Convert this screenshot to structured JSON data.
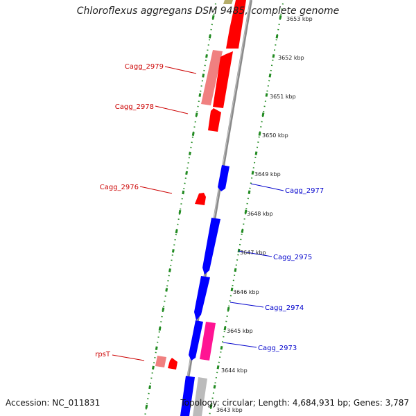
{
  "title": "Chloroflexus aggregans DSM 9485, complete genome",
  "accession": "Accession: NC_011831",
  "topology": "Topology: circular; Length: 4,684,931 bp; Genes: 3,787",
  "colors": {
    "forward_red": "#ff0000",
    "forward_light": "#f08080",
    "reverse_blue": "#0000ff",
    "magenta": "#ff1493",
    "grey": "#bbbbbb",
    "olive": "#b5ad6a",
    "dotted_green": "#228b22",
    "backbone": "#888888",
    "label_red": "#cc0000",
    "label_blue": "#0000cc"
  },
  "tick_labels": [
    "3653 kbp",
    "3652 kbp",
    "3651 kbp",
    "3650 kbp",
    "3649 kbp",
    "3648 kbp",
    "3647 kbp",
    "3646 kbp",
    "3645 kbp",
    "3644 kbp",
    "3643 kbp"
  ],
  "gene_labels": [
    {
      "text": "Cagg_2979",
      "side": "left"
    },
    {
      "text": "Cagg_2978",
      "side": "left"
    },
    {
      "text": "Cagg_2976",
      "side": "left"
    },
    {
      "text": "rpsT",
      "side": "left"
    },
    {
      "text": "Cagg_2977",
      "side": "right"
    },
    {
      "text": "Cagg_2975",
      "side": "right"
    },
    {
      "text": "Cagg_2974",
      "side": "right"
    },
    {
      "text": "Cagg_2973",
      "side": "right"
    }
  ]
}
